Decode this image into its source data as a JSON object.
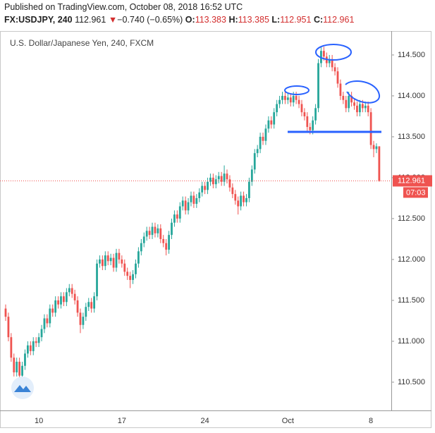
{
  "header": {
    "published": "Published on TradingView.com, October 08, 2018 16:52 UTC",
    "symbol": "FX:USDJPY, 240",
    "price": "112.961",
    "arrow": "▼",
    "change": "−0.740 (−0.65%)",
    "o_label": "O:",
    "o": "113.383",
    "h_label": "H:",
    "h": "113.385",
    "l_label": "L:",
    "l": "112.951",
    "c_label": "C:",
    "c": "112.961"
  },
  "chart_data": {
    "type": "candlestick",
    "title": "U.S. Dollar/Japanese Yen, 240, FXCM",
    "up_color": "#26a69a",
    "down_color": "#ef5350",
    "ylim": [
      110.172,
      114.784
    ],
    "yticks": [
      {
        "value": 110.5,
        "label": "110.500"
      },
      {
        "value": 111,
        "label": "111.000"
      },
      {
        "value": 111.5,
        "label": "111.500"
      },
      {
        "value": 112,
        "label": "112.000"
      },
      {
        "value": 112.5,
        "label": "112.500"
      },
      {
        "value": 113,
        "label": "113.000"
      },
      {
        "value": 113.5,
        "label": "113.500"
      },
      {
        "value": 114,
        "label": "114.000"
      },
      {
        "value": 114.5,
        "label": "114.500"
      }
    ],
    "price_line": 112.961,
    "countdown": "07:03",
    "categories": [
      null,
      null,
      null,
      null,
      null,
      null,
      null,
      null,
      null,
      null,
      null,
      null,
      "10",
      null,
      null,
      null,
      null,
      null,
      null,
      null,
      null,
      null,
      null,
      null,
      null,
      null,
      null,
      null,
      null,
      null,
      null,
      null,
      null,
      null,
      null,
      null,
      null,
      null,
      null,
      null,
      null,
      null,
      "17",
      null,
      null,
      null,
      null,
      null,
      null,
      null,
      null,
      null,
      null,
      null,
      null,
      null,
      null,
      null,
      null,
      null,
      null,
      null,
      null,
      null,
      null,
      null,
      null,
      null,
      null,
      null,
      null,
      null,
      "24",
      null,
      null,
      null,
      null,
      null,
      null,
      null,
      null,
      null,
      null,
      null,
      null,
      null,
      null,
      null,
      null,
      null,
      null,
      null,
      null,
      null,
      null,
      null,
      null,
      null,
      null,
      null,
      null,
      null,
      "Oct",
      null,
      null,
      null,
      null,
      null,
      null,
      null,
      null,
      null,
      null,
      null,
      null,
      null,
      null,
      null,
      null,
      null,
      null,
      null,
      null,
      null,
      null,
      null,
      null,
      null,
      null,
      null,
      null,
      null,
      "8",
      null,
      null,
      null
    ],
    "open": [
      111.4,
      111.3,
      111.05,
      110.8,
      110.62,
      110.75,
      110.58,
      110.7,
      110.85,
      110.95,
      110.88,
      111.0,
      110.98,
      111.05,
      111.15,
      111.28,
      111.22,
      111.4,
      111.35,
      111.5,
      111.45,
      111.55,
      111.48,
      111.6,
      111.65,
      111.58,
      111.5,
      111.35,
      111.2,
      111.3,
      111.42,
      111.48,
      111.4,
      111.55,
      111.95,
      112.0,
      111.92,
      112.05,
      111.98,
      112.02,
      111.9,
      112.08,
      112.0,
      111.95,
      111.85,
      111.8,
      111.75,
      111.82,
      111.95,
      112.1,
      112.2,
      112.28,
      112.35,
      112.3,
      112.4,
      112.32,
      112.38,
      112.25,
      112.2,
      112.12,
      112.3,
      112.45,
      112.55,
      112.5,
      112.65,
      112.72,
      112.6,
      112.7,
      112.78,
      112.68,
      112.75,
      112.82,
      112.9,
      112.85,
      112.95,
      113.0,
      112.92,
      112.98,
      113.02,
      112.95,
      113.05,
      112.98,
      112.88,
      112.8,
      112.72,
      112.65,
      112.78,
      112.7,
      112.75,
      112.95,
      113.1,
      113.3,
      113.35,
      113.5,
      113.45,
      113.6,
      113.7,
      113.65,
      113.8,
      113.9,
      113.95,
      114.0,
      113.95,
      113.98,
      113.92,
      114.0,
      113.95,
      113.9,
      113.8,
      113.75,
      113.62,
      113.58,
      113.7,
      113.85,
      114.4,
      114.55,
      114.48,
      114.4,
      114.45,
      114.35,
      114.3,
      114.15,
      114.0,
      113.95,
      113.85,
      114.0,
      113.92,
      113.88,
      113.8,
      113.9,
      113.85,
      113.88,
      113.8,
      113.4,
      113.35,
      113.383
    ],
    "high": [
      111.45,
      111.35,
      111.1,
      110.85,
      110.8,
      110.8,
      110.75,
      110.9,
      111.0,
      111.0,
      111.05,
      111.05,
      111.1,
      111.2,
      111.33,
      111.33,
      111.45,
      111.45,
      111.55,
      111.55,
      111.6,
      111.6,
      111.65,
      111.7,
      111.7,
      111.63,
      111.55,
      111.4,
      111.35,
      111.47,
      111.53,
      111.53,
      111.6,
      112.0,
      112.05,
      112.05,
      112.1,
      112.1,
      112.07,
      112.07,
      112.13,
      112.13,
      112.05,
      112.0,
      111.9,
      111.85,
      111.87,
      112.0,
      112.15,
      112.25,
      112.33,
      112.4,
      112.4,
      112.45,
      112.45,
      112.43,
      112.43,
      112.3,
      112.25,
      112.35,
      112.5,
      112.6,
      112.6,
      112.7,
      112.77,
      112.77,
      112.75,
      112.83,
      112.83,
      112.8,
      112.87,
      112.95,
      112.95,
      113.0,
      113.05,
      113.05,
      113.03,
      113.07,
      113.07,
      113.15,
      113.1,
      113.03,
      112.93,
      112.85,
      112.77,
      112.83,
      112.83,
      112.8,
      113.0,
      113.15,
      113.35,
      113.4,
      113.55,
      113.55,
      113.65,
      113.75,
      113.75,
      113.85,
      113.95,
      114.0,
      114.05,
      114.05,
      114.03,
      114.03,
      114.05,
      114.05,
      114.0,
      113.95,
      113.85,
      113.8,
      113.67,
      113.75,
      113.9,
      114.45,
      114.6,
      114.6,
      114.53,
      114.5,
      114.5,
      114.4,
      114.35,
      114.2,
      114.05,
      114.0,
      114.05,
      114.05,
      113.97,
      113.93,
      113.95,
      113.95,
      113.93,
      113.93,
      113.85,
      113.45,
      113.42,
      113.385
    ],
    "low": [
      111.25,
      111.0,
      110.75,
      110.57,
      110.57,
      110.45,
      110.53,
      110.65,
      110.8,
      110.83,
      110.83,
      110.93,
      110.93,
      111.0,
      111.1,
      111.17,
      111.17,
      111.3,
      111.3,
      111.4,
      111.4,
      111.43,
      111.43,
      111.55,
      111.53,
      111.45,
      111.3,
      111.1,
      111.15,
      111.25,
      111.37,
      111.35,
      111.35,
      111.5,
      111.9,
      111.87,
      111.87,
      111.93,
      111.93,
      111.85,
      111.85,
      111.95,
      111.9,
      111.8,
      111.75,
      111.65,
      111.7,
      111.77,
      111.9,
      112.05,
      112.15,
      112.23,
      112.25,
      112.25,
      112.27,
      112.27,
      112.2,
      112.15,
      112.05,
      112.07,
      112.25,
      112.4,
      112.45,
      112.45,
      112.6,
      112.55,
      112.55,
      112.65,
      112.63,
      112.63,
      112.7,
      112.77,
      112.8,
      112.8,
      112.9,
      112.87,
      112.87,
      112.93,
      112.9,
      112.9,
      112.93,
      112.83,
      112.75,
      112.67,
      112.55,
      112.6,
      112.65,
      112.65,
      112.7,
      112.9,
      113.05,
      113.25,
      113.3,
      113.4,
      113.4,
      113.55,
      113.6,
      113.6,
      113.75,
      113.85,
      113.9,
      113.9,
      113.9,
      113.87,
      113.87,
      113.9,
      113.85,
      113.75,
      113.7,
      113.57,
      113.53,
      113.53,
      113.65,
      113.8,
      114.35,
      114.43,
      114.35,
      114.35,
      114.3,
      114.25,
      114.1,
      113.95,
      113.9,
      113.8,
      113.8,
      113.87,
      113.83,
      113.75,
      113.75,
      113.8,
      113.8,
      113.75,
      113.35,
      113.25,
      113.3,
      112.951
    ],
    "close": [
      111.3,
      111.05,
      110.8,
      110.62,
      110.75,
      110.58,
      110.7,
      110.85,
      110.95,
      110.88,
      111.0,
      110.98,
      111.05,
      111.15,
      111.28,
      111.22,
      111.4,
      111.35,
      111.5,
      111.45,
      111.55,
      111.48,
      111.6,
      111.65,
      111.58,
      111.5,
      111.35,
      111.2,
      111.3,
      111.42,
      111.48,
      111.4,
      111.55,
      111.95,
      112.0,
      111.92,
      112.05,
      111.98,
      112.02,
      111.9,
      112.08,
      112.0,
      111.95,
      111.85,
      111.8,
      111.75,
      111.82,
      111.95,
      112.1,
      112.2,
      112.28,
      112.35,
      112.3,
      112.4,
      112.32,
      112.38,
      112.25,
      112.2,
      112.12,
      112.3,
      112.45,
      112.55,
      112.5,
      112.65,
      112.72,
      112.6,
      112.7,
      112.78,
      112.68,
      112.75,
      112.82,
      112.9,
      112.85,
      112.95,
      113.0,
      112.92,
      112.98,
      113.02,
      112.95,
      113.05,
      112.98,
      112.88,
      112.8,
      112.72,
      112.65,
      112.78,
      112.7,
      112.75,
      112.95,
      113.1,
      113.3,
      113.35,
      113.5,
      113.45,
      113.6,
      113.7,
      113.65,
      113.8,
      113.9,
      113.95,
      114.0,
      113.95,
      113.98,
      113.92,
      114.0,
      113.95,
      113.9,
      113.8,
      113.75,
      113.62,
      113.58,
      113.7,
      113.85,
      114.4,
      114.55,
      114.48,
      114.4,
      114.45,
      114.35,
      114.3,
      114.15,
      114.0,
      113.95,
      113.85,
      114.0,
      113.92,
      113.88,
      113.8,
      113.9,
      113.85,
      113.88,
      113.8,
      113.4,
      113.35,
      113.383,
      112.961
    ]
  }
}
